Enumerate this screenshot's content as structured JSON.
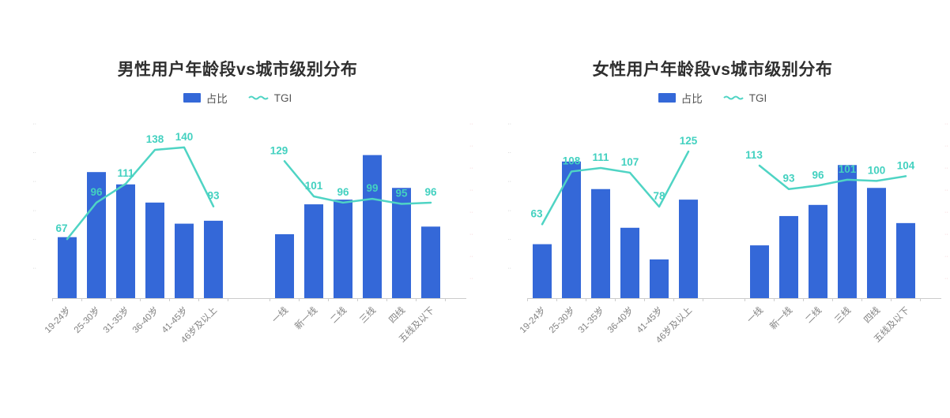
{
  "colors": {
    "bar": "#3468d8",
    "line": "#4fd4c4",
    "tgi_label": "#43d1c0",
    "title": "#2f2f2f",
    "legend_text": "#555555",
    "axis_line": "#cccccc",
    "x_label": "#828282",
    "y_tick_left": "#bdbdbd",
    "y_tick_right": "#f1bcbe"
  },
  "chart_data": [
    {
      "type": "bar+line",
      "title": "男性用户年龄段vs城市级别分布",
      "legend": [
        {
          "label": "占比",
          "series_type": "bar"
        },
        {
          "label": "TGI",
          "series_type": "line"
        }
      ],
      "groups": [
        {
          "name": "年龄段",
          "categories": [
            "19-24岁",
            "25-30岁",
            "31-35岁",
            "36-40岁",
            "41-45岁",
            "46岁及以上"
          ],
          "series": [
            {
              "name": "占比",
              "type": "bar",
              "unit": "%",
              "estimated": true,
              "values": [
                10.4,
                21.5,
                19.4,
                16.3,
                12.7,
                13.2
              ]
            },
            {
              "name": "TGI",
              "type": "line",
              "values": [
                67,
                96,
                111,
                138,
                140,
                93
              ]
            }
          ]
        },
        {
          "name": "城市级别",
          "categories": [
            "一线",
            "新一线",
            "二线",
            "三线",
            "四线",
            "五线及以下"
          ],
          "series": [
            {
              "name": "占比",
              "type": "bar",
              "unit": "%",
              "estimated": true,
              "values": [
                10.9,
                16.0,
                16.8,
                24.4,
                18.8,
                12.2
              ]
            },
            {
              "name": "TGI",
              "type": "line",
              "values": [
                129,
                101,
                96,
                99,
                95,
                96
              ]
            }
          ]
        }
      ],
      "layout": {
        "legend_position": "top",
        "grid": false,
        "bar_axis_max": 30,
        "tgi_axis_range": [
          20,
          160
        ],
        "y_tick_labels": "illegible",
        "y_tick_placeholder": "··",
        "x_label_rotation": 45
      }
    },
    {
      "type": "bar+line",
      "title": "女性用户年龄段vs城市级别分布",
      "legend": [
        {
          "label": "占比",
          "series_type": "bar"
        },
        {
          "label": "TGI",
          "series_type": "line"
        }
      ],
      "groups": [
        {
          "name": "年龄段",
          "categories": [
            "19-24岁",
            "25-30岁",
            "31-35岁",
            "36-40岁",
            "41-45岁",
            "46岁及以上"
          ],
          "series": [
            {
              "name": "占比",
              "type": "bar",
              "unit": "%",
              "estimated": true,
              "values": [
                9.2,
                23.3,
                18.6,
                12.0,
                6.6,
                16.8
              ]
            },
            {
              "name": "TGI",
              "type": "line",
              "values": [
                63,
                108,
                111,
                107,
                78,
                125
              ]
            }
          ]
        },
        {
          "name": "城市级别",
          "categories": [
            "一线",
            "新一线",
            "二线",
            "三线",
            "四线",
            "五线及以下"
          ],
          "series": [
            {
              "name": "占比",
              "type": "bar",
              "unit": "%",
              "estimated": true,
              "values": [
                9.0,
                14.0,
                15.9,
                22.7,
                18.8,
                12.8
              ]
            },
            {
              "name": "TGI",
              "type": "line",
              "values": [
                113,
                93,
                96,
                101,
                100,
                104
              ]
            }
          ]
        }
      ],
      "layout": {
        "legend_position": "top",
        "grid": false,
        "bar_axis_max": 30,
        "tgi_axis_range": [
          0,
          150
        ],
        "y_tick_labels": "illegible",
        "y_tick_placeholder": "··",
        "x_label_rotation": 45
      }
    }
  ]
}
